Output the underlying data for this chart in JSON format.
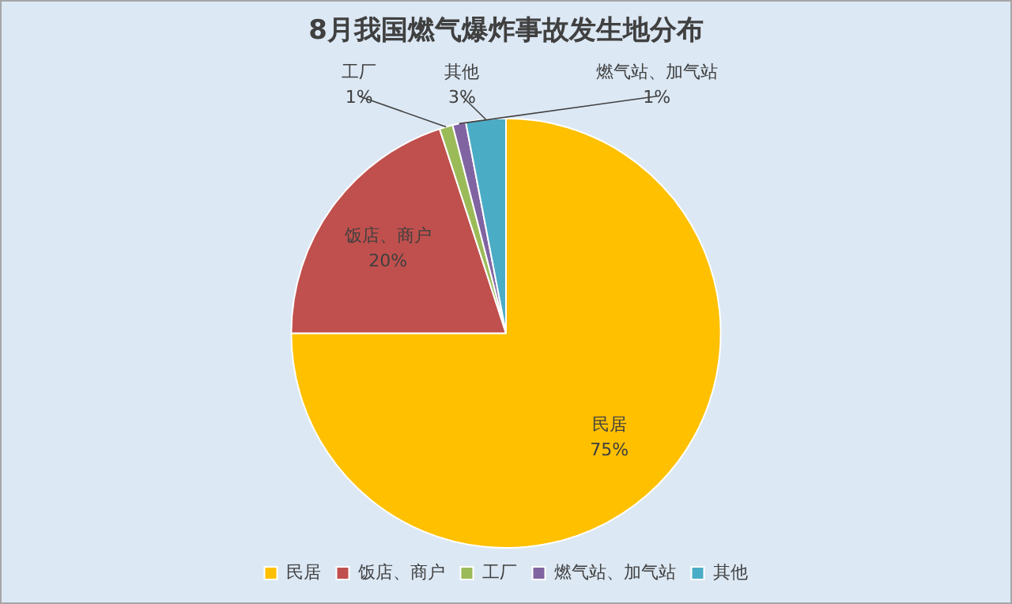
{
  "chart_data": {
    "type": "pie",
    "title": "8月我国燃气爆炸事故发生地分布",
    "categories": [
      "民居",
      "饭店、商户",
      "工厂",
      "燃气站、加气站",
      "其他"
    ],
    "values": [
      75,
      20,
      1,
      1,
      3
    ],
    "value_labels": [
      "75%",
      "20%",
      "1%",
      "1%",
      "3%"
    ],
    "colors": [
      "#ffc000",
      "#c0504d",
      "#9bbb59",
      "#8064a2",
      "#4bacc6"
    ],
    "legend": "bottom"
  }
}
